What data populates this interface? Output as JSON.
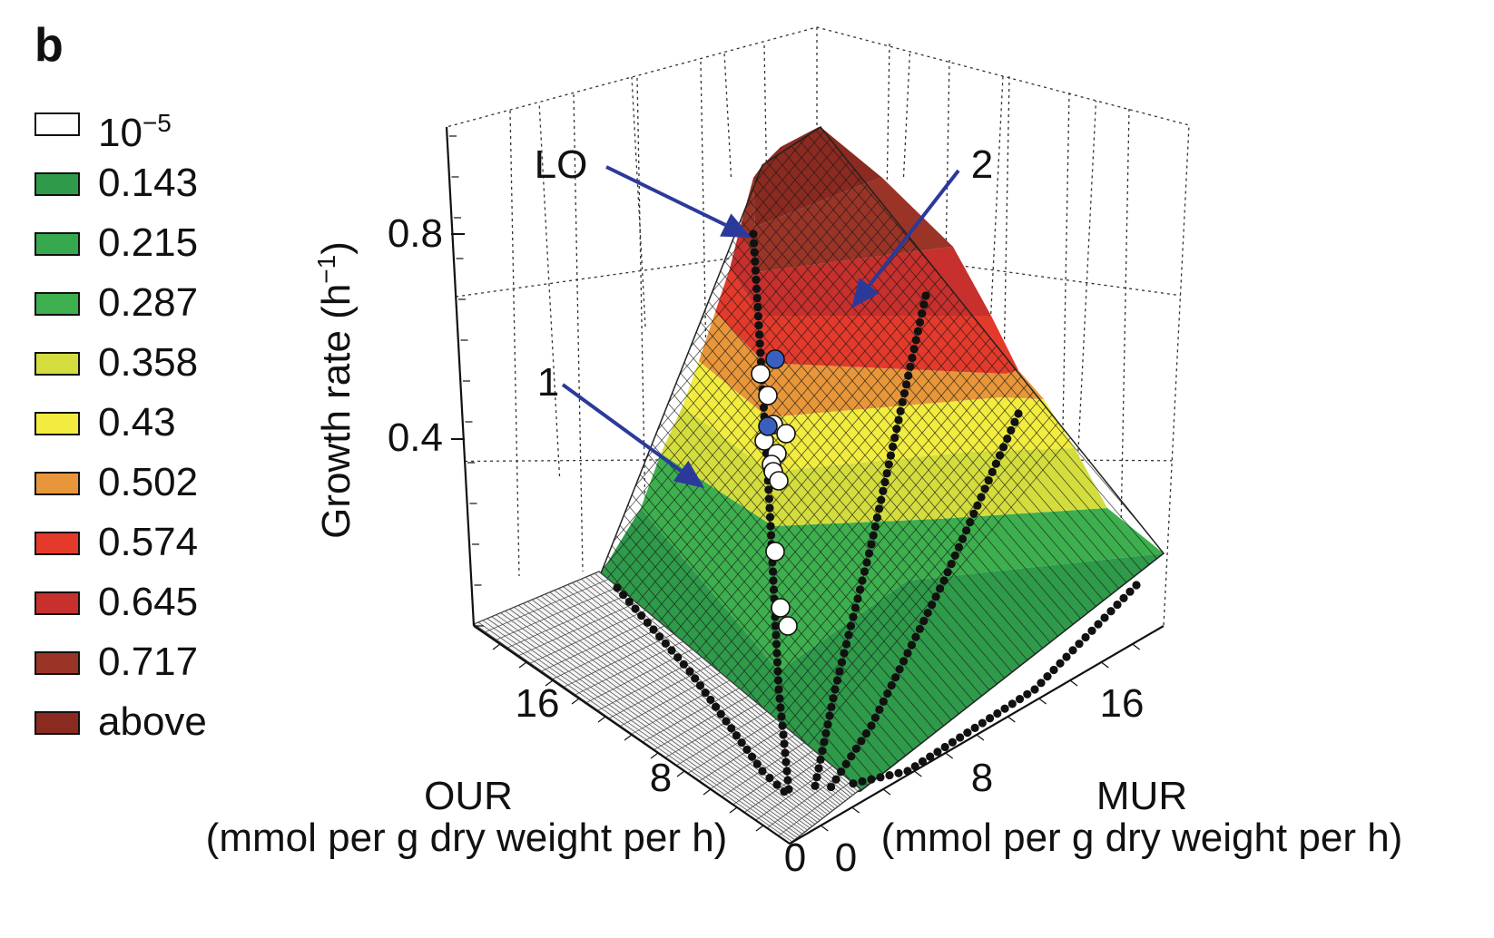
{
  "panel_label": "b",
  "legend": [
    {
      "label": "10",
      "sup": "−5",
      "color": "#ffffff"
    },
    {
      "label": "0.143",
      "color": "#2e9a4a"
    },
    {
      "label": "0.215",
      "color": "#36a94e"
    },
    {
      "label": "0.287",
      "color": "#3daf4e"
    },
    {
      "label": "0.358",
      "color": "#d3dd3e"
    },
    {
      "label": "0.43",
      "color": "#f1ec3f"
    },
    {
      "label": "0.502",
      "color": "#e8963a"
    },
    {
      "label": "0.574",
      "color": "#e33a2c"
    },
    {
      "label": "0.645",
      "color": "#c7302c"
    },
    {
      "label": "0.717",
      "color": "#9a3426"
    },
    {
      "label": "above",
      "color": "#8b2a20"
    }
  ],
  "chart_data": {
    "type": "surface3d",
    "zlabel": "Growth rate (h",
    "zlabel_sup": "−1",
    "zlabel_tail": ")",
    "z_ticks": [
      "0.8",
      "0.4"
    ],
    "z_tick_values": [
      0.8,
      0.4
    ],
    "our_label": "OUR",
    "our_units": "(mmol per g dry weight per h)",
    "our_ticks": [
      "0",
      "8",
      "16"
    ],
    "mur_label": "MUR",
    "mur_units": "(mmol per g dry weight per h)",
    "mur_ticks": [
      "0",
      "8",
      "16"
    ],
    "annotations": [
      {
        "label": "LO",
        "target": "line of optimality"
      },
      {
        "label": "1",
        "target": "region 1"
      },
      {
        "label": "2",
        "target": "region 2"
      }
    ],
    "band_colors": [
      "#2e9a4a",
      "#3daf4e",
      "#d3dd3e",
      "#f1ec3f",
      "#e8963a",
      "#e33a2c",
      "#c7302c",
      "#9a3426",
      "#8b2a20"
    ],
    "arrow_color": "#2b3a9a",
    "marker_white": "#ffffff",
    "marker_blue": "#3a5fbf"
  }
}
